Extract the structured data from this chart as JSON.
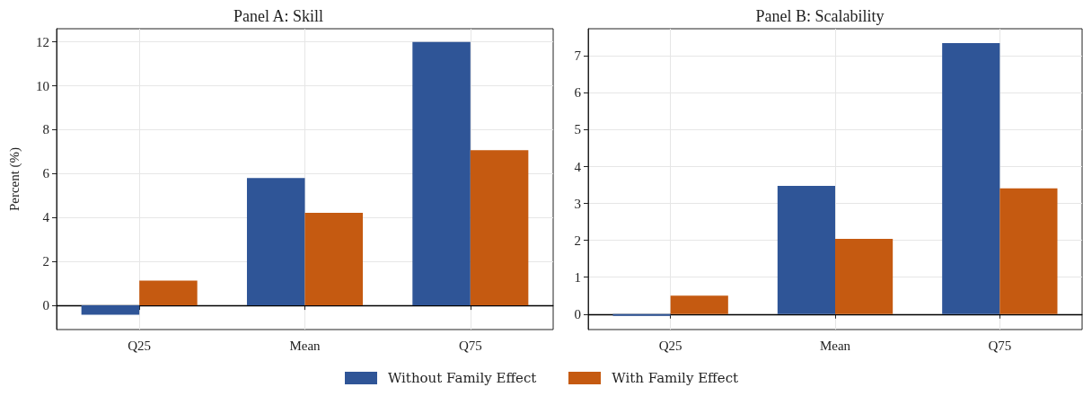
{
  "chart_data": [
    {
      "type": "bar",
      "title": "Panel A: Skill",
      "ylabel": "Percent (%)",
      "categories": [
        "Q25",
        "Mean",
        "Q75"
      ],
      "series": [
        {
          "name": "Without Family Effect",
          "color": "#2f5597",
          "values": [
            -0.43,
            5.8,
            12.0
          ]
        },
        {
          "name": "With Family Effect",
          "color": "#c55a11",
          "values": [
            1.13,
            4.22,
            7.07
          ]
        }
      ],
      "ylim": [
        -1.1,
        12.6
      ],
      "yticks": [
        0,
        2,
        4,
        6,
        8,
        10,
        12
      ],
      "grid": true,
      "legend": "bottom",
      "ref_lines": [
        {
          "axis": "y",
          "value": 0,
          "label": null,
          "color": "#000000"
        }
      ]
    },
    {
      "type": "bar",
      "title": "Panel B: Scalability",
      "categories": [
        "Q25",
        "Mean",
        "Q75"
      ],
      "series": [
        {
          "name": "Without Family Effect",
          "color": "#2f5597",
          "values": [
            -0.05,
            3.48,
            7.35
          ]
        },
        {
          "name": "With Family Effect",
          "color": "#c55a11",
          "values": [
            0.5,
            2.04,
            3.41
          ]
        }
      ],
      "ylim": [
        -0.42,
        7.74
      ],
      "yticks": [
        0,
        1,
        2,
        3,
        4,
        5,
        6,
        7
      ],
      "grid": true,
      "legend": "bottom",
      "ref_lines": [
        {
          "axis": "y",
          "value": 0,
          "label": null,
          "color": "#000000"
        }
      ]
    }
  ]
}
